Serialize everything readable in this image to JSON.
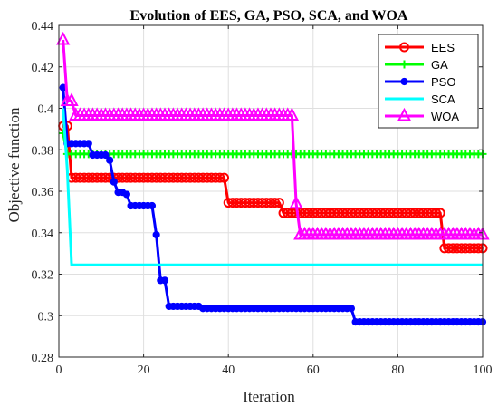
{
  "chart_data": {
    "type": "line",
    "title": "Evolution of EES, GA, PSO, SCA, and WOA",
    "xlabel": "Iteration",
    "ylabel": "Objective function",
    "xlim": [
      0,
      100
    ],
    "ylim": [
      0.28,
      0.44
    ],
    "xticks": [
      0,
      20,
      40,
      60,
      80,
      100
    ],
    "xtick_labels": [
      "0",
      "20",
      "40",
      "60",
      "80",
      "100"
    ],
    "yticks": [
      0.28,
      0.3,
      0.32,
      0.34,
      0.36,
      0.38,
      0.4,
      0.42,
      0.44
    ],
    "ytick_labels": [
      "0.28",
      "0.3",
      "0.32",
      "0.34",
      "0.36",
      "0.38",
      "0.4",
      "0.42",
      "0.44"
    ],
    "grid": true,
    "legend_position": "top-right",
    "series": [
      {
        "name": "EES",
        "color": "#ff0000",
        "marker": "circle",
        "points": [
          [
            1,
            0.3915
          ],
          [
            2,
            0.3915
          ],
          [
            3,
            0.3665
          ],
          [
            39,
            0.3665
          ],
          [
            40,
            0.3545
          ],
          [
            52,
            0.3545
          ],
          [
            53,
            0.3495
          ],
          [
            90,
            0.3495
          ],
          [
            91,
            0.3325
          ],
          [
            100,
            0.3325
          ]
        ]
      },
      {
        "name": "GA",
        "color": "#00ff00",
        "marker": "plus",
        "points": [
          [
            1,
            0.388
          ],
          [
            2,
            0.378
          ],
          [
            100,
            0.378
          ]
        ]
      },
      {
        "name": "PSO",
        "color": "#0000ff",
        "marker": "circle-filled",
        "points": [
          [
            1,
            0.41
          ],
          [
            2,
            0.383
          ],
          [
            7,
            0.383
          ],
          [
            8,
            0.3775
          ],
          [
            11,
            0.3775
          ],
          [
            12,
            0.375
          ],
          [
            13,
            0.3645
          ],
          [
            14,
            0.3595
          ],
          [
            16,
            0.3585
          ],
          [
            17,
            0.353
          ],
          [
            22,
            0.353
          ],
          [
            23,
            0.339
          ],
          [
            24,
            0.317
          ],
          [
            25,
            0.317
          ],
          [
            26,
            0.3045
          ],
          [
            33,
            0.3045
          ],
          [
            34,
            0.3035
          ],
          [
            69,
            0.3035
          ],
          [
            70,
            0.297
          ],
          [
            100,
            0.297
          ]
        ]
      },
      {
        "name": "SCA",
        "color": "#00ffff",
        "marker": "none",
        "points": [
          [
            1,
            0.4
          ],
          [
            2,
            0.37
          ],
          [
            3,
            0.3245
          ],
          [
            100,
            0.3245
          ]
        ]
      },
      {
        "name": "WOA",
        "color": "#ff00ff",
        "marker": "triangle",
        "points": [
          [
            1,
            0.433
          ],
          [
            2,
            0.4035
          ],
          [
            3,
            0.4035
          ],
          [
            4,
            0.3965
          ],
          [
            55,
            0.3965
          ],
          [
            56,
            0.354
          ],
          [
            57,
            0.339
          ],
          [
            100,
            0.339
          ]
        ]
      }
    ]
  }
}
